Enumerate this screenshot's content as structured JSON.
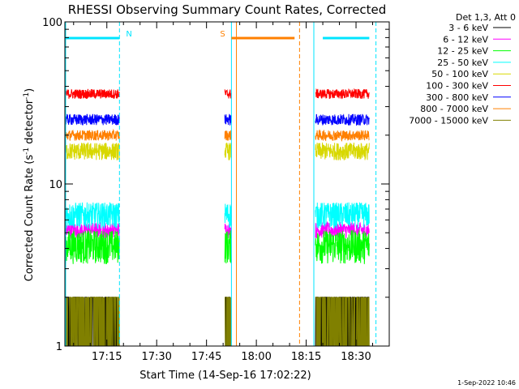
{
  "chart_data": {
    "type": "line",
    "title": "RHESSI Observing Summary Count Rates, Corrected",
    "xlabel": "Start Time (14-Sep-16 17:02:22)",
    "ylabel_main": "Corrected Count Rate (s",
    "ylabel_sup1": "-1",
    "ylabel_mid": " detector",
    "ylabel_sup2": "-1",
    "ylabel_end": ")",
    "y_scale": "log",
    "ylim": [
      1,
      100
    ],
    "xlim_minutes": [
      1022.37,
      1120
    ],
    "x_ticks": [
      {
        "minute": 1035,
        "label": "17:15"
      },
      {
        "minute": 1050,
        "label": "17:30"
      },
      {
        "minute": 1065,
        "label": "17:45"
      },
      {
        "minute": 1080,
        "label": "18:00"
      },
      {
        "minute": 1095,
        "label": "18:15"
      },
      {
        "minute": 1110,
        "label": "18:30"
      }
    ],
    "y_ticks": [
      {
        "value": 1,
        "label": "1"
      },
      {
        "value": 10,
        "label": "10"
      },
      {
        "value": 100,
        "label": "100"
      }
    ],
    "legend_title": "Det 1,3, Att 0",
    "legend_position": "right",
    "timestamp": "1-Sep-2022 10:46",
    "series": [
      {
        "name": "3 - 6 keV",
        "color": "#000000",
        "level": 1.6,
        "spread": 0.6
      },
      {
        "name": "6 - 12 keV",
        "color": "#ff00ff",
        "level": 5.2,
        "spread": 0.6
      },
      {
        "name": "12 - 25 keV",
        "color": "#00ff00",
        "level": 4.2,
        "spread": 1.0
      },
      {
        "name": "25 - 50 keV",
        "color": "#00ffff",
        "level": 6.5,
        "spread": 1.2
      },
      {
        "name": "50 - 100 keV",
        "color": "#d8d800",
        "level": 16,
        "spread": 2.0
      },
      {
        "name": "100 - 300 keV",
        "color": "#ff0000",
        "level": 36,
        "spread": 2.5
      },
      {
        "name": "300 - 800 keV",
        "color": "#0000ff",
        "level": 25,
        "spread": 2.0
      },
      {
        "name": "800 - 7000 keV",
        "color": "#ff8000",
        "level": 20,
        "spread": 1.5
      },
      {
        "name": "7000 - 15000 keV",
        "color": "#808000",
        "level": 1.4,
        "spread": 0.4
      }
    ],
    "data_segments": [
      {
        "start": 1022.4,
        "end": 1038.8
      },
      {
        "start": 1070.5,
        "end": 1072.5
      },
      {
        "start": 1097.8,
        "end": 1114.0
      }
    ],
    "flag_markers": [
      {
        "label": "N",
        "color": "#00e5ff",
        "start": 1022.4,
        "end": 1038.8
      },
      {
        "label": "S",
        "color": "#ff8000",
        "start": 1072.5,
        "end": 1091.5
      },
      {
        "label": "",
        "color": "#00e5ff",
        "start": 1100.0,
        "end": 1114.0
      }
    ],
    "boundaries": [
      {
        "minute": 1022.6,
        "color": "#00e5ff",
        "style": "solid"
      },
      {
        "minute": 1038.8,
        "color": "#00e5ff",
        "style": "dashed"
      },
      {
        "minute": 1072.5,
        "color": "#00e5ff",
        "style": "solid"
      },
      {
        "minute": 1074.0,
        "color": "#ff8000",
        "style": "solid"
      },
      {
        "minute": 1093.0,
        "color": "#ff8000",
        "style": "dashed"
      },
      {
        "minute": 1097.3,
        "color": "#00e5ff",
        "style": "solid"
      },
      {
        "minute": 1116.0,
        "color": "#00e5ff",
        "style": "dashed"
      }
    ]
  }
}
